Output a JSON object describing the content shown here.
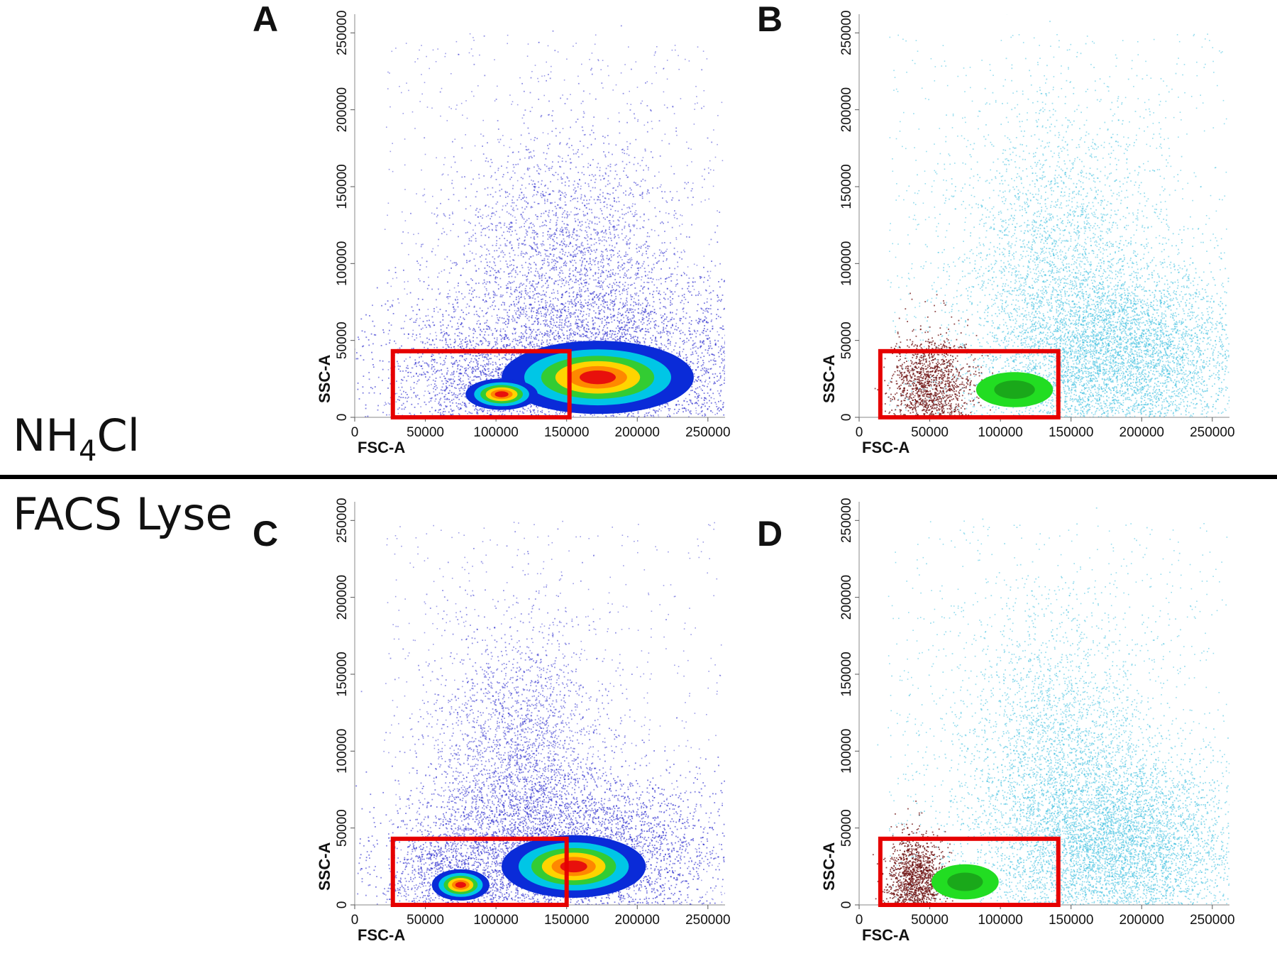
{
  "row_labels": {
    "top": {
      "main": "NH",
      "sub": "4",
      "rest": "Cl"
    },
    "bottom": "FACS Lyse"
  },
  "colors": {
    "dot_blue": "#2222cc",
    "dot_cyan": "#3cc0e0",
    "dot_darkred": "#6b0d0d",
    "gate": "#e60000",
    "density": [
      "#0a2bd8",
      "#00c6e6",
      "#33cc33",
      "#ffd400",
      "#ff8800",
      "#e8100c"
    ]
  },
  "chart_data": [
    {
      "panel": "A",
      "type": "scatter",
      "style": "density-dot",
      "xlabel": "FSC-A",
      "ylabel": "SSC-A",
      "xlim": [
        0,
        262144
      ],
      "ylim": [
        0,
        262144
      ],
      "xticks": [
        0,
        50000,
        100000,
        150000,
        200000,
        250000
      ],
      "yticks": [
        0,
        50000,
        100000,
        150000,
        200000,
        250000
      ],
      "gate": {
        "x": [
          27000,
          152000
        ],
        "y": [
          0,
          43000
        ]
      },
      "populations": [
        {
          "name": "main",
          "cx": 172000,
          "cy": 26000,
          "sx": 40000,
          "sy": 14000
        },
        {
          "name": "granular",
          "cx": 150000,
          "cy": 100000,
          "sx": 40000,
          "sy": 45000
        },
        {
          "name": "small",
          "cx": 104000,
          "cy": 15000,
          "sx": 15000,
          "sy": 6000
        }
      ]
    },
    {
      "panel": "B",
      "type": "scatter",
      "style": "gated-overlay",
      "xlabel": "FSC-A",
      "ylabel": "SSC-A",
      "xlim": [
        0,
        262144
      ],
      "ylim": [
        0,
        262144
      ],
      "xticks": [
        0,
        50000,
        100000,
        150000,
        200000,
        250000
      ],
      "yticks": [
        0,
        50000,
        100000,
        150000,
        200000,
        250000
      ],
      "gate": {
        "x": [
          15000,
          141000
        ],
        "y": [
          0,
          43000
        ]
      },
      "populations": [
        {
          "name": "debris",
          "cx": 50000,
          "cy": 20000,
          "sx": 15000,
          "sy": 18000
        },
        {
          "name": "gated",
          "cx": 110000,
          "cy": 18000,
          "sx": 16000,
          "sy": 6000
        },
        {
          "name": "background",
          "cx": 180000,
          "cy": 40000,
          "sx": 45000,
          "sy": 30000
        }
      ]
    },
    {
      "panel": "C",
      "type": "scatter",
      "style": "density-dot",
      "xlabel": "FSC-A",
      "ylabel": "SSC-A",
      "xlim": [
        0,
        262144
      ],
      "ylim": [
        0,
        262144
      ],
      "xticks": [
        0,
        50000,
        100000,
        150000,
        200000,
        250000
      ],
      "yticks": [
        0,
        50000,
        100000,
        150000,
        200000,
        250000
      ],
      "gate": {
        "x": [
          27000,
          150000
        ],
        "y": [
          0,
          43000
        ]
      },
      "populations": [
        {
          "name": "main",
          "cx": 155000,
          "cy": 25000,
          "sx": 30000,
          "sy": 12000
        },
        {
          "name": "granular",
          "cx": 115000,
          "cy": 95000,
          "sx": 30000,
          "sy": 45000
        },
        {
          "name": "small",
          "cx": 75000,
          "cy": 13000,
          "sx": 12000,
          "sy": 6000
        }
      ]
    },
    {
      "panel": "D",
      "type": "scatter",
      "style": "gated-overlay",
      "xlabel": "FSC-A",
      "ylabel": "SSC-A",
      "xlim": [
        0,
        262144
      ],
      "ylim": [
        0,
        262144
      ],
      "xticks": [
        0,
        50000,
        100000,
        150000,
        200000,
        250000
      ],
      "yticks": [
        0,
        50000,
        100000,
        150000,
        200000,
        250000
      ],
      "gate": {
        "x": [
          15000,
          141000
        ],
        "y": [
          0,
          43000
        ]
      },
      "populations": [
        {
          "name": "debris",
          "cx": 40000,
          "cy": 15000,
          "sx": 10000,
          "sy": 15000
        },
        {
          "name": "gated",
          "cx": 75000,
          "cy": 15000,
          "sx": 14000,
          "sy": 6000
        },
        {
          "name": "background",
          "cx": 180000,
          "cy": 40000,
          "sx": 45000,
          "sy": 30000
        }
      ]
    }
  ]
}
